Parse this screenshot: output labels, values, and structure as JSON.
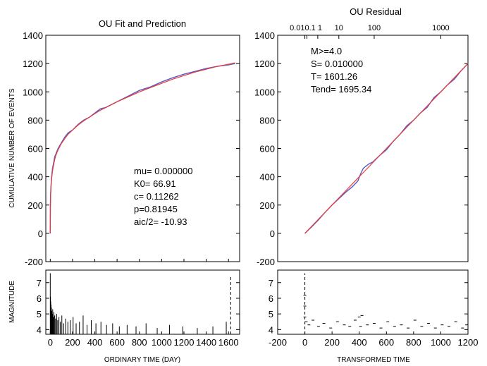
{
  "chart_data": [
    {
      "id": "ou-fit",
      "type": "line",
      "title": "OU Fit and Prediction",
      "xlabel": "ORDINARY TIME (DAY)",
      "ylabel": "CUMULATIVE NUMBER OF EVENTS",
      "xlim": [
        -40,
        1700
      ],
      "ylim": [
        -200,
        1400
      ],
      "xticks": [
        0,
        200,
        400,
        600,
        800,
        1000,
        1200,
        1400,
        1600
      ],
      "xtick_labels": [
        "0",
        "200",
        "400",
        "600",
        "800",
        "1000",
        "1200",
        "1400",
        "1600"
      ],
      "yticks": [
        -200,
        0,
        200,
        400,
        600,
        800,
        1000,
        1200,
        1400
      ],
      "ytick_labels": [
        "-200",
        "0",
        "200",
        "400",
        "600",
        "800",
        "1000",
        "1200",
        "1400"
      ],
      "series": [
        {
          "color": "#5b5bc4",
          "x": [
            0,
            1,
            3,
            6,
            10,
            15,
            20,
            30,
            40,
            50,
            70,
            100,
            130,
            160,
            200,
            250,
            300,
            350,
            400,
            450,
            500,
            600,
            700,
            800,
            900,
            1000,
            1100,
            1200,
            1300,
            1400,
            1500,
            1600,
            1660
          ],
          "y": [
            0,
            200,
            280,
            330,
            380,
            420,
            460,
            500,
            540,
            560,
            600,
            640,
            680,
            710,
            730,
            770,
            800,
            820,
            850,
            880,
            890,
            930,
            970,
            1010,
            1035,
            1070,
            1100,
            1125,
            1145,
            1165,
            1180,
            1190,
            1200
          ]
        },
        {
          "color": "#e83a3a",
          "x": [
            0,
            1,
            3,
            6,
            10,
            15,
            20,
            30,
            40,
            50,
            70,
            100,
            130,
            160,
            200,
            250,
            300,
            350,
            400,
            450,
            500,
            600,
            700,
            800,
            900,
            1000,
            1100,
            1200,
            1300,
            1400,
            1500,
            1600,
            1660
          ],
          "y": [
            0,
            180,
            260,
            320,
            365,
            405,
            440,
            485,
            520,
            550,
            590,
            635,
            670,
            700,
            730,
            765,
            795,
            820,
            845,
            870,
            890,
            930,
            965,
            1000,
            1030,
            1060,
            1090,
            1115,
            1140,
            1160,
            1180,
            1195,
            1205
          ]
        }
      ],
      "annotations": [
        "mu= 0.000000",
        "K0=   66.91",
        "c=   0.11262",
        "p=0.81945",
        "aic/2=  -10.93"
      ]
    },
    {
      "id": "ou-residual",
      "type": "line",
      "title": "OU Residual",
      "xlabel": "TRANSFORMED TIME",
      "xlim": [
        -200,
        1200
      ],
      "ylim": [
        -200,
        1400
      ],
      "xticks": [
        -200,
        0,
        200,
        400,
        600,
        800,
        1000,
        1200
      ],
      "xtick_labels": [
        "-200",
        "0",
        "200",
        "400",
        "600",
        "800",
        "1000",
        "1200"
      ],
      "yticks": [
        -200,
        0,
        200,
        400,
        600,
        800,
        1000,
        1200,
        1400
      ],
      "ytick_labels": [
        "-200",
        "0",
        "200",
        "400",
        "600",
        "800",
        "1000",
        "1200",
        "1400"
      ],
      "top_axis_label": "0.010.1    1",
      "top_axis_ticks": [
        {
          "label": "",
          "value": 0
        },
        {
          "label": "",
          "value": 15
        },
        {
          "label": "",
          "value": 95
        },
        {
          "label": "10",
          "value": 250
        },
        {
          "label": "100",
          "value": 510
        },
        {
          "label": "1000",
          "value": 1000
        }
      ],
      "series": [
        {
          "color": "#5b5bc4",
          "x": [
            0,
            50,
            100,
            150,
            200,
            250,
            300,
            350,
            390,
            410,
            430,
            470,
            500,
            550,
            600,
            650,
            700,
            750,
            800,
            850,
            900,
            950,
            1000,
            1050,
            1100,
            1150,
            1200
          ],
          "y": [
            0,
            45,
            95,
            150,
            200,
            245,
            290,
            330,
            370,
            420,
            460,
            490,
            505,
            550,
            590,
            650,
            700,
            760,
            800,
            850,
            890,
            960,
            1000,
            1050,
            1090,
            1150,
            1200
          ]
        },
        {
          "color": "#e83a3a",
          "x": [
            0,
            1200
          ],
          "y": [
            0,
            1200
          ]
        }
      ],
      "annotations": [
        "M>=4.0",
        "S=       0.010000",
        "T=      1601.26",
        "Tend=      1695.34"
      ]
    },
    {
      "id": "magnitude-ordinary",
      "type": "bar",
      "ylabel": "MAGNITUDE",
      "xlim": [
        -40,
        1700
      ],
      "ylim": [
        3.7,
        7.8
      ],
      "yticks": [
        4,
        5,
        6,
        7
      ],
      "ytick_labels": [
        "4",
        "5",
        "6",
        "7"
      ],
      "x": [
        0,
        2,
        4,
        7,
        10,
        14,
        18,
        22,
        27,
        33,
        40,
        48,
        57,
        67,
        78,
        90,
        104,
        120,
        138,
        158,
        180,
        205,
        232,
        262,
        295,
        330,
        368,
        410,
        455,
        505,
        560,
        620,
        690,
        770,
        860,
        960,
        1070,
        1190,
        1320,
        1460,
        1580,
        1620
      ],
      "values": [
        7.6,
        6.1,
        5.8,
        5.6,
        5.4,
        5.2,
        5.0,
        5.3,
        4.8,
        5.1,
        4.9,
        4.7,
        5.0,
        4.6,
        4.8,
        4.5,
        4.9,
        4.4,
        4.7,
        4.5,
        4.6,
        4.8,
        4.4,
        4.5,
        4.9,
        4.3,
        4.6,
        4.4,
        4.5,
        4.3,
        4.4,
        4.2,
        4.3,
        4.2,
        4.4,
        4.1,
        4.3,
        4.2,
        4.1,
        4.2,
        4.5,
        7.4
      ]
    },
    {
      "id": "magnitude-transformed",
      "type": "scatter",
      "xlabel": "TRANSFORMED TIME",
      "xlim": [
        -200,
        1200
      ],
      "ylim": [
        3.7,
        7.8
      ],
      "yticks": [
        4,
        5,
        6,
        7
      ],
      "ytick_labels": [
        "4",
        "5",
        "6",
        "7"
      ],
      "xticks": [
        -200,
        0,
        200,
        400,
        600,
        800,
        1000,
        1200
      ],
      "xtick_labels": [
        "-200",
        "0",
        "200",
        "400",
        "600",
        "800",
        "1000",
        "1200"
      ],
      "x": [
        0,
        0,
        0,
        0,
        10,
        30,
        60,
        100,
        140,
        190,
        240,
        290,
        330,
        370,
        400,
        410,
        420,
        460,
        510,
        560,
        610,
        660,
        710,
        760,
        810,
        860,
        910,
        960,
        1010,
        1060,
        1110,
        1160,
        1190,
        1200
      ],
      "values": [
        7.6,
        6.2,
        5.5,
        4.8,
        4.5,
        4.3,
        4.6,
        4.2,
        4.4,
        4.1,
        4.5,
        4.3,
        4.2,
        4.6,
        4.8,
        4.2,
        4.9,
        4.3,
        4.4,
        4.1,
        4.5,
        4.2,
        4.3,
        4.1,
        4.6,
        4.2,
        4.4,
        4.1,
        4.3,
        4.2,
        4.5,
        4.1,
        4.3,
        7.5
      ]
    }
  ]
}
